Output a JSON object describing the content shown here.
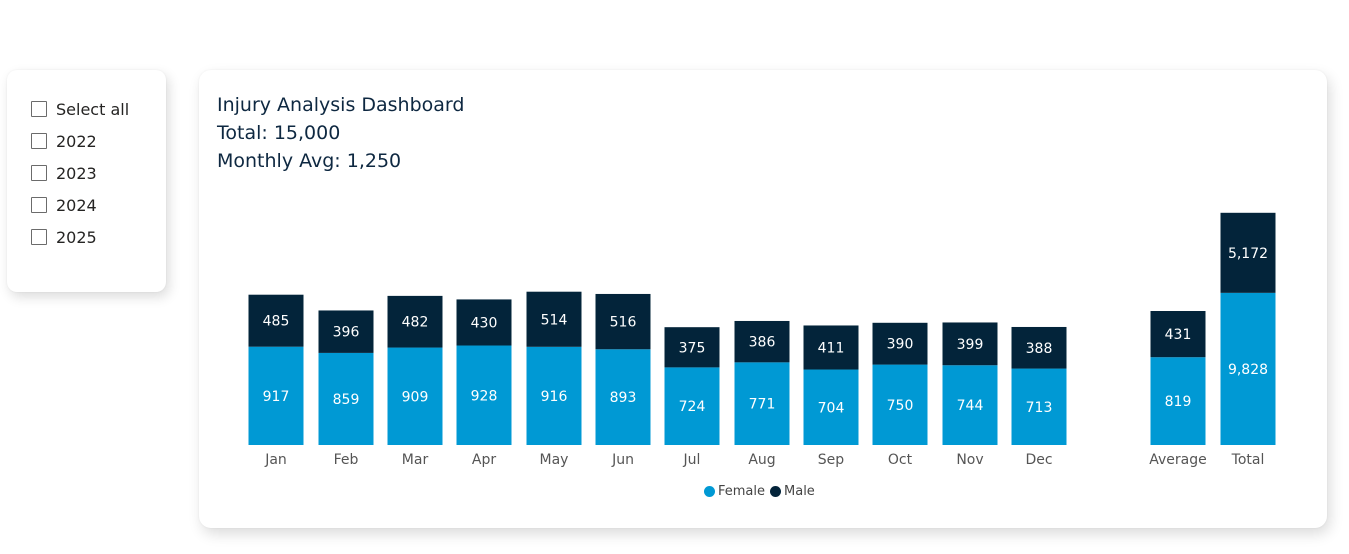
{
  "slicer": {
    "items": [
      {
        "label": "Select all",
        "checked": false
      },
      {
        "label": "2022",
        "checked": false
      },
      {
        "label": "2023",
        "checked": false
      },
      {
        "label": "2024",
        "checked": false
      },
      {
        "label": "2025",
        "checked": false
      }
    ]
  },
  "chart_header": {
    "title": "Injury Analysis Dashboard",
    "total_line": "Total: 15,000",
    "avg_line": "Monthly Avg: 1,250"
  },
  "colors": {
    "female": "#0099d4",
    "male": "#03243a",
    "axis_text": "#555555"
  },
  "chart_data": {
    "type": "bar",
    "stacked": true,
    "categories": [
      "Jan",
      "Feb",
      "Mar",
      "Apr",
      "May",
      "Jun",
      "Jul",
      "Aug",
      "Sep",
      "Oct",
      "Nov",
      "Dec",
      "Average",
      "Total"
    ],
    "series": [
      {
        "name": "Female",
        "values": [
          917,
          859,
          909,
          928,
          916,
          893,
          724,
          771,
          704,
          750,
          744,
          713,
          819,
          9828
        ],
        "labels": [
          "917",
          "859",
          "909",
          "928",
          "916",
          "893",
          "724",
          "771",
          "704",
          "750",
          "744",
          "713",
          "819",
          "9,828"
        ]
      },
      {
        "name": "Male",
        "values": [
          485,
          396,
          482,
          430,
          514,
          516,
          375,
          386,
          411,
          390,
          399,
          388,
          431,
          5172
        ],
        "labels": [
          "485",
          "396",
          "482",
          "430",
          "514",
          "516",
          "375",
          "386",
          "411",
          "390",
          "399",
          "388",
          "431",
          "5,172"
        ]
      }
    ],
    "legend_position": "bottom-center",
    "gridlines": false
  }
}
